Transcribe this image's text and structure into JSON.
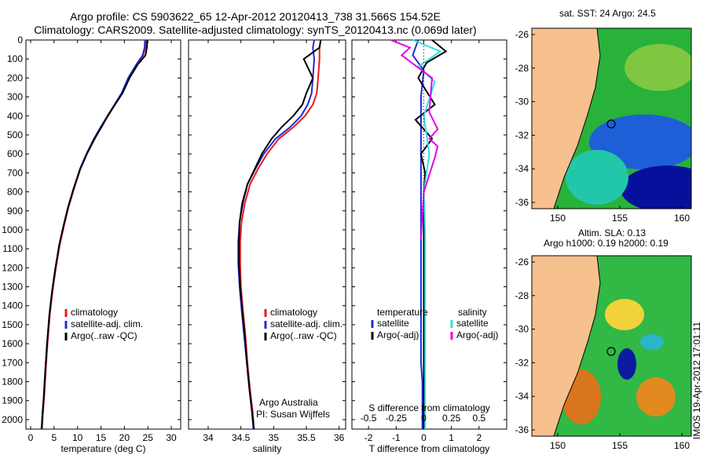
{
  "title_line1": "Argo profile: CS 5903622_65 12-Apr-2012 20120413_738 31.566S 154.52E",
  "title_line2": "Climatology: CARS2009. Satellite-adjusted climatology: synTS_20120413.nc (0.069d later)",
  "colors": {
    "climatology": "#e8191e",
    "satellite": "#1f2bd8",
    "argo": "#000000",
    "argo_adj": "#e600e6",
    "sat_salinity": "#33e0e6",
    "land": "#f7c08f"
  },
  "panels": {
    "temperature": {
      "xlabel": "temperature (deg C)",
      "legend": [
        "climatology",
        "satellite-adj. clim.",
        "Argo(..raw -QC)"
      ]
    },
    "salinity": {
      "xlabel": "salinity",
      "legend": [
        "climatology",
        "satellite-adj. clim.",
        "Argo(..raw -QC)"
      ],
      "annotation1": "Argo Australia",
      "annotation2": "PI: Susan Wijffels"
    },
    "difference": {
      "xlabel": "T difference from climatology",
      "top_label": "S difference from climatology",
      "legend_temp_head": "temperature",
      "legend_sal_head": "salinity",
      "legend_temp": [
        "satellite",
        "Argo(-adj)"
      ],
      "legend_sal": [
        "satellite",
        "Argo(-adj)"
      ]
    }
  },
  "maps": {
    "sst_title": "sat. SST: 24 Argo: 24.5",
    "sla_title1": "Altim. SLA: 0.13",
    "sla_title2": "Argo h1000: 0.19 h2000: 0.19",
    "lat_ticks": [
      "-26",
      "-28",
      "-30",
      "-32",
      "-34",
      "-36"
    ],
    "lon_ticks": [
      "150",
      "155",
      "160"
    ]
  },
  "stamp": "IMOS 19-Apr-2012 17:01:11",
  "chart_data": [
    {
      "type": "line",
      "title": "Argo profile: CS 5903622_65 12-Apr-2012 20120413_738 31.566S 154.52E",
      "xlabel": "temperature (deg C)",
      "ylabel": "",
      "xlim": [
        -1,
        32
      ],
      "ylim": [
        2050,
        0
      ],
      "xticks": [
        0,
        5,
        10,
        15,
        20,
        25,
        30
      ],
      "yticks": [
        0,
        100,
        200,
        300,
        400,
        500,
        600,
        700,
        800,
        900,
        1000,
        1100,
        1200,
        1300,
        1400,
        1500,
        1600,
        1700,
        1800,
        1900,
        2000
      ],
      "series": [
        {
          "name": "climatology",
          "color": "#e8191e",
          "x": [
            24.6,
            24.5,
            24.0,
            22.6,
            21.0,
            19.5,
            18.0,
            16.5,
            15.0,
            13.7,
            12.0,
            10.6,
            9.3,
            8.1,
            7.1,
            6.2,
            5.4,
            4.7,
            4.1,
            3.6,
            3.2,
            2.9,
            2.6,
            2.4
          ],
          "y": [
            0,
            40,
            80,
            130,
            200,
            280,
            340,
            400,
            460,
            520,
            600,
            680,
            780,
            880,
            980,
            1080,
            1200,
            1320,
            1450,
            1600,
            1750,
            1880,
            1980,
            2050
          ]
        },
        {
          "name": "satellite-adj. clim.",
          "color": "#1f2bd8",
          "x": [
            24.4,
            24.3,
            23.9,
            22.5,
            20.8,
            19.4,
            17.9,
            16.4,
            14.9,
            13.5,
            11.9,
            10.5,
            9.2,
            8.0,
            7.0,
            6.1,
            5.3,
            4.6,
            4.0,
            3.5,
            3.1,
            2.8,
            2.5,
            2.3
          ],
          "y": [
            0,
            40,
            80,
            130,
            200,
            280,
            340,
            400,
            460,
            520,
            600,
            680,
            780,
            880,
            980,
            1080,
            1200,
            1320,
            1450,
            1600,
            1750,
            1880,
            1980,
            2050
          ]
        },
        {
          "name": "Argo(..raw -QC)",
          "color": "#000000",
          "x": [
            24.9,
            24.8,
            24.5,
            22.8,
            21.1,
            19.6,
            18.0,
            16.4,
            15.1,
            13.6,
            12.0,
            10.6,
            9.2,
            8.0,
            7.0,
            6.1,
            5.3,
            4.6,
            4.0,
            3.5,
            3.1,
            2.8,
            2.5,
            2.4
          ],
          "y": [
            0,
            40,
            80,
            130,
            200,
            280,
            340,
            400,
            460,
            520,
            600,
            680,
            780,
            880,
            980,
            1080,
            1200,
            1320,
            1450,
            1600,
            1750,
            1880,
            1980,
            2050
          ]
        }
      ],
      "legend": "lower-left"
    },
    {
      "type": "line",
      "xlabel": "salinity",
      "xlim": [
        33.7,
        36.1
      ],
      "ylim": [
        2050,
        0
      ],
      "xticks": [
        34,
        34.5,
        35,
        35.5,
        36
      ],
      "series": [
        {
          "name": "climatology",
          "color": "#e8191e",
          "x": [
            35.72,
            35.7,
            35.7,
            35.68,
            35.66,
            35.6,
            35.48,
            35.3,
            35.08,
            34.9,
            34.76,
            34.64,
            34.56,
            34.51,
            34.49,
            34.49,
            34.5,
            34.53,
            34.57,
            34.6,
            34.64,
            34.68,
            34.7
          ],
          "y": [
            0,
            40,
            100,
            200,
            280,
            340,
            400,
            460,
            520,
            600,
            680,
            760,
            860,
            960,
            1060,
            1180,
            1300,
            1420,
            1560,
            1700,
            1840,
            1960,
            2050
          ]
        },
        {
          "name": "satellite-adj. clim.",
          "color": "#1f2bd8",
          "x": [
            35.62,
            35.6,
            35.62,
            35.6,
            35.58,
            35.52,
            35.42,
            35.25,
            35.03,
            34.85,
            34.72,
            34.6,
            34.53,
            34.48,
            34.46,
            34.46,
            34.48,
            34.51,
            34.55,
            34.59,
            34.63,
            34.67,
            34.69
          ],
          "y": [
            0,
            40,
            100,
            200,
            280,
            340,
            400,
            460,
            520,
            600,
            680,
            760,
            860,
            960,
            1060,
            1180,
            1300,
            1420,
            1560,
            1700,
            1840,
            1960,
            2050
          ]
        },
        {
          "name": "Argo(..raw -QC)",
          "color": "#000000",
          "x": [
            35.72,
            35.7,
            35.46,
            35.6,
            35.5,
            35.44,
            35.3,
            35.12,
            34.97,
            34.82,
            34.71,
            34.6,
            34.52,
            34.48,
            34.47,
            34.47,
            34.49,
            34.52,
            34.56,
            34.59,
            34.63,
            34.67,
            34.7
          ],
          "y": [
            0,
            40,
            100,
            200,
            280,
            340,
            400,
            460,
            520,
            600,
            680,
            760,
            860,
            960,
            1060,
            1180,
            1300,
            1420,
            1560,
            1700,
            1840,
            1960,
            2050
          ]
        }
      ],
      "legend": "lower-left"
    },
    {
      "type": "line",
      "xlabel": "T difference from climatology",
      "ylabel": "S difference from climatology",
      "xlim": [
        -2.6,
        3.0
      ],
      "ylim": [
        2050,
        0
      ],
      "xticks": [
        -2,
        -1,
        0,
        1,
        2
      ],
      "x2ticks": [
        -0.5,
        -0.25,
        0,
        0.25,
        0.5
      ],
      "series": [
        {
          "name": "temperature satellite",
          "color": "#1f2bd8",
          "x": [
            -0.2,
            -0.3,
            -0.4,
            0.0,
            -0.1,
            -0.1,
            -0.1,
            -0.1,
            -0.1,
            -0.1,
            -0.1,
            -0.1,
            -0.1,
            -0.1,
            -0.1,
            -0.05,
            -0.05,
            -0.05
          ],
          "y": [
            0,
            40,
            80,
            160,
            300,
            500,
            700,
            900,
            1100,
            1200,
            1300,
            1400,
            1500,
            1600,
            1700,
            1800,
            1900,
            2050
          ]
        },
        {
          "name": "temperature Argo(-adj)",
          "color": "#000000",
          "x": [
            0.3,
            0.8,
            0.1,
            -0.2,
            0.4,
            -0.3,
            0.3,
            -0.1,
            0.05,
            0.0,
            0.0,
            0.0,
            0.0,
            0.0,
            0.0,
            0.0
          ],
          "y": [
            0,
            60,
            120,
            200,
            340,
            420,
            520,
            600,
            700,
            800,
            1000,
            1200,
            1400,
            1600,
            1800,
            2050
          ]
        },
        {
          "name": "salinity satellite",
          "color": "#33e0e6",
          "x": [
            -0.4,
            0.6,
            -0.2,
            0.4,
            0.0,
            0.2,
            0.0,
            0.05,
            0.05,
            0.05,
            0.05,
            0.05
          ],
          "y": [
            0,
            60,
            140,
            220,
            400,
            600,
            800,
            1000,
            1200,
            1400,
            1700,
            2050
          ]
        },
        {
          "name": "salinity Argo(-adj)",
          "color": "#e600e6",
          "x": [
            -1.2,
            -0.5,
            -0.8,
            0.3,
            0.2,
            0.5,
            0.2,
            0.5,
            0.4,
            0.0,
            -0.1
          ],
          "y": [
            0,
            40,
            80,
            200,
            380,
            470,
            520,
            560,
            620,
            800,
            1050
          ]
        }
      ],
      "legend": "lower-left"
    }
  ]
}
